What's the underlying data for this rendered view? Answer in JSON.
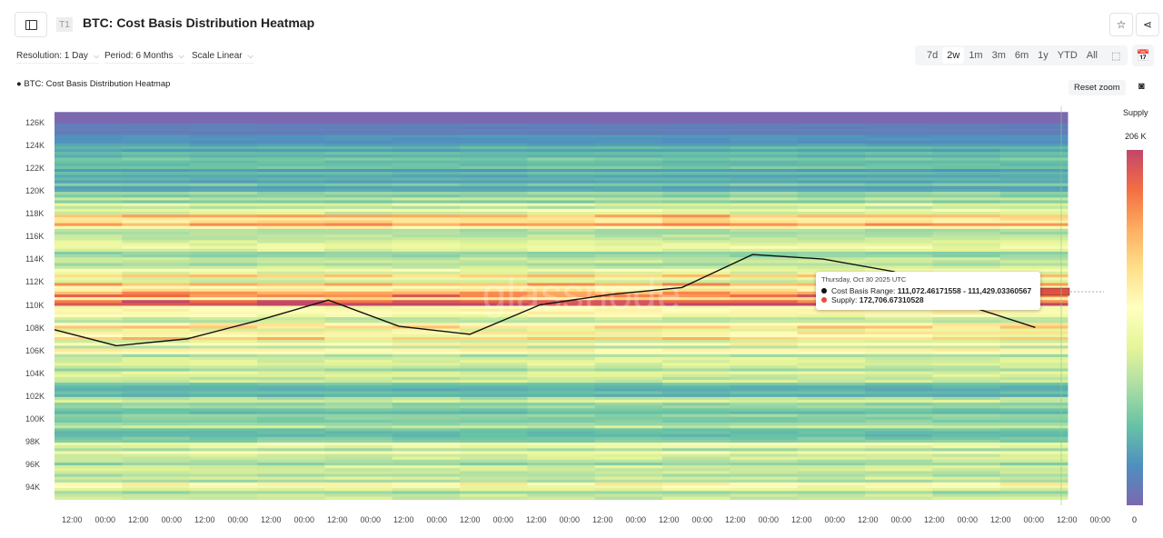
{
  "header": {
    "title": "BTC: Cost Basis Distribution Heatmap",
    "tag": "T1"
  },
  "controls": {
    "resolution": "Resolution: 1 Day",
    "period": "Period: 6 Months",
    "scale": "Scale Linear"
  },
  "ranges": [
    "7d",
    "2w",
    "1m",
    "3m",
    "6m",
    "1y",
    "YTD",
    "All"
  ],
  "active_range": "2w",
  "reset_zoom": "Reset zoom",
  "legend": "BTC: Cost Basis Distribution Heatmap",
  "colorbar": {
    "title": "Supply",
    "max_label": "206 K",
    "min_label": "0",
    "colors": [
      "#7b68b0",
      "#4f8fc0",
      "#66c2a5",
      "#abdda4",
      "#e6f598",
      "#ffffbf",
      "#fee08b",
      "#fdae61",
      "#f46d43",
      "#c2466a"
    ]
  },
  "tooltip": {
    "date": "Thursday, Oct 30 2025 UTC",
    "range_label": "Cost Basis Range: ",
    "range_value": "111,072.46171558 - 111,429.03360567",
    "supply_label": "Supply: ",
    "supply_value": "172,706.67310528"
  },
  "watermark": "glassnode",
  "chart_data": {
    "type": "heatmap",
    "y_ticks": [
      "126K",
      "124K",
      "122K",
      "120K",
      "118K",
      "116K",
      "114K",
      "112K",
      "110K",
      "108K",
      "106K",
      "104K",
      "102K",
      "100K",
      "98K",
      "96K",
      "94K"
    ],
    "x_ticks": [
      "12:00",
      "00:00",
      "12:00",
      "00:00",
      "12:00",
      "00:00",
      "12:00",
      "00:00",
      "12:00",
      "00:00",
      "12:00",
      "00:00",
      "12:00",
      "00:00",
      "12:00",
      "00:00",
      "12:00",
      "00:00",
      "12:00",
      "00:00",
      "12:00",
      "00:00",
      "12:00",
      "00:00",
      "12:00",
      "00:00",
      "12:00",
      "00:00",
      "12:00",
      "00:00",
      "12:00",
      "00:00"
    ],
    "ylim": [
      92.5,
      127.5
    ],
    "zlim": [
      0,
      206
    ],
    "bins_lower_k": [
      126,
      125,
      124,
      123,
      122,
      121,
      120,
      119,
      118,
      117,
      116,
      115,
      114,
      113,
      112,
      111,
      110,
      109,
      108,
      107,
      106,
      105,
      104,
      103,
      102,
      101,
      100,
      99,
      98,
      97,
      96,
      95,
      94,
      93
    ],
    "supply_k": [
      0,
      15,
      30,
      40,
      50,
      35,
      45,
      60,
      90,
      150,
      90,
      80,
      70,
      85,
      110,
      130,
      172,
      100,
      110,
      115,
      100,
      85,
      75,
      70,
      40,
      85,
      60,
      70,
      60,
      90,
      75,
      70,
      95,
      80
    ],
    "price_line": {
      "dates": [
        "Oct 16",
        "Oct 17",
        "Oct 18",
        "Oct 19",
        "Oct 20",
        "Oct 21",
        "Oct 22",
        "Oct 23",
        "Oct 24",
        "Oct 25",
        "Oct 26",
        "Oct 27",
        "Oct 28",
        "Oct 29",
        "Oct 30"
      ],
      "values": [
        107.9,
        106.5,
        107.1,
        108.7,
        110.5,
        108.2,
        107.5,
        110.1,
        111.0,
        111.6,
        114.5,
        114.1,
        113.0,
        110.1,
        108.1
      ]
    }
  }
}
